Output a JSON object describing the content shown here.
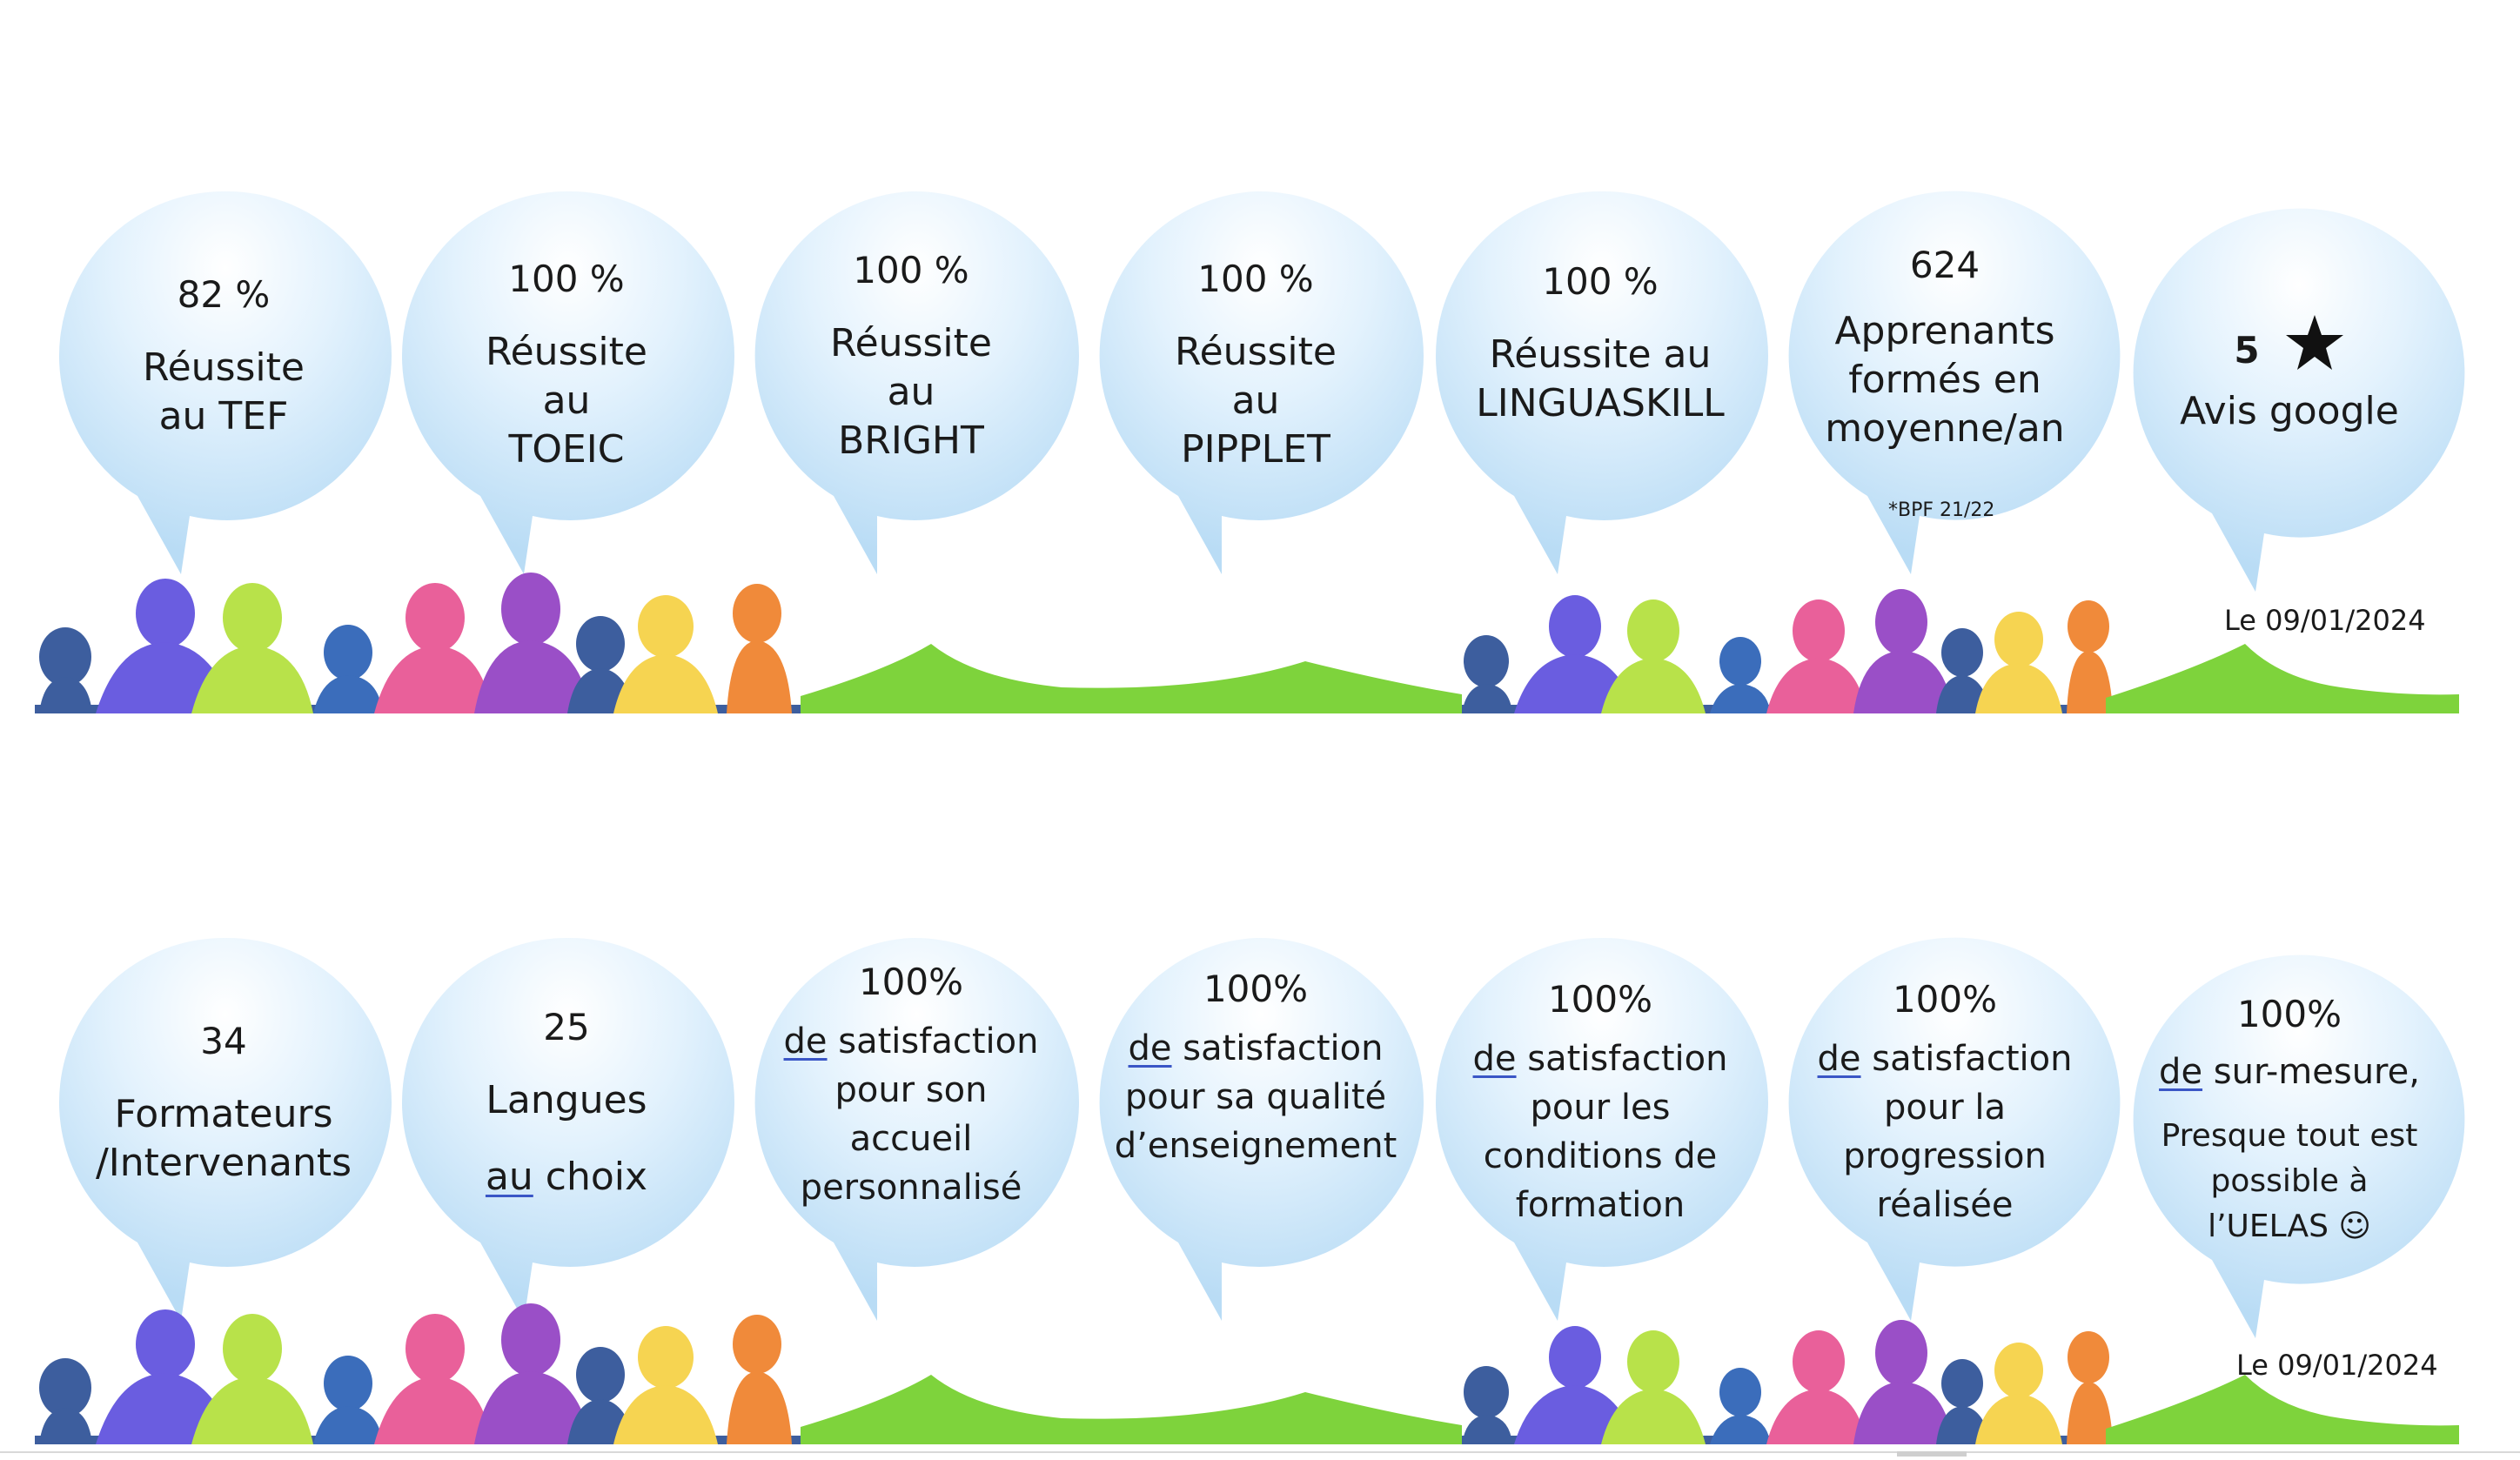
{
  "rows": [
    {
      "bubbles": [
        {
          "value": "82 %",
          "lines": [
            "Réussite",
            "au TEF"
          ]
        },
        {
          "value": "100 %",
          "lines": [
            "Réussite",
            "au",
            "TOEIC"
          ]
        },
        {
          "value": "100 %",
          "lines": [
            "Réussite",
            "au",
            "BRIGHT"
          ]
        },
        {
          "value": "100 %",
          "lines": [
            "Réussite",
            "au",
            "PIPPLET"
          ]
        },
        {
          "value": "100 %",
          "lines": [
            "Réussite au",
            "LINGUASKILL"
          ]
        },
        {
          "value": "624",
          "lines": [
            "Apprenants",
            "formés en",
            "moyenne/an"
          ],
          "note": "*BPF 21/22"
        },
        {
          "value": "5",
          "star": "star-icon",
          "lines": [
            "Avis google"
          ]
        }
      ],
      "date": "Le 09/01/2024"
    },
    {
      "bubbles": [
        {
          "value": "34",
          "lines": [
            "Formateurs",
            "/Intervenants"
          ]
        },
        {
          "value": "25",
          "lines": [
            "Langues",
            "au choix"
          ]
        },
        {
          "value": "100%",
          "lines": [
            "de satisfaction",
            "pour son",
            "accueil",
            "personnalisé"
          ]
        },
        {
          "value": "100%",
          "lines": [
            "de satisfaction",
            "pour sa qualité",
            "d’enseignement"
          ]
        },
        {
          "value": "100%",
          "lines": [
            "de satisfaction",
            "pour les",
            "conditions de",
            "formation"
          ]
        },
        {
          "value": "100%",
          "lines": [
            "de satisfaction",
            "pour la",
            "progression",
            "réalisée"
          ]
        },
        {
          "value": "100%",
          "lines": [
            "de sur-mesure,",
            "Presque tout est",
            "possible à",
            "l’UELAS ☺"
          ]
        }
      ],
      "date": "Le 09/01/2024"
    }
  ],
  "colors": {
    "bubble_light": "#ffffff",
    "bubble_dark": "#b9dcf5",
    "grass": "#7ed33c",
    "people": [
      "#3d5e9e",
      "#6a5de0",
      "#b8e24a",
      "#e9609a",
      "#9a4fc7",
      "#f6d451",
      "#f08a3a",
      "#3b6dbb"
    ]
  }
}
